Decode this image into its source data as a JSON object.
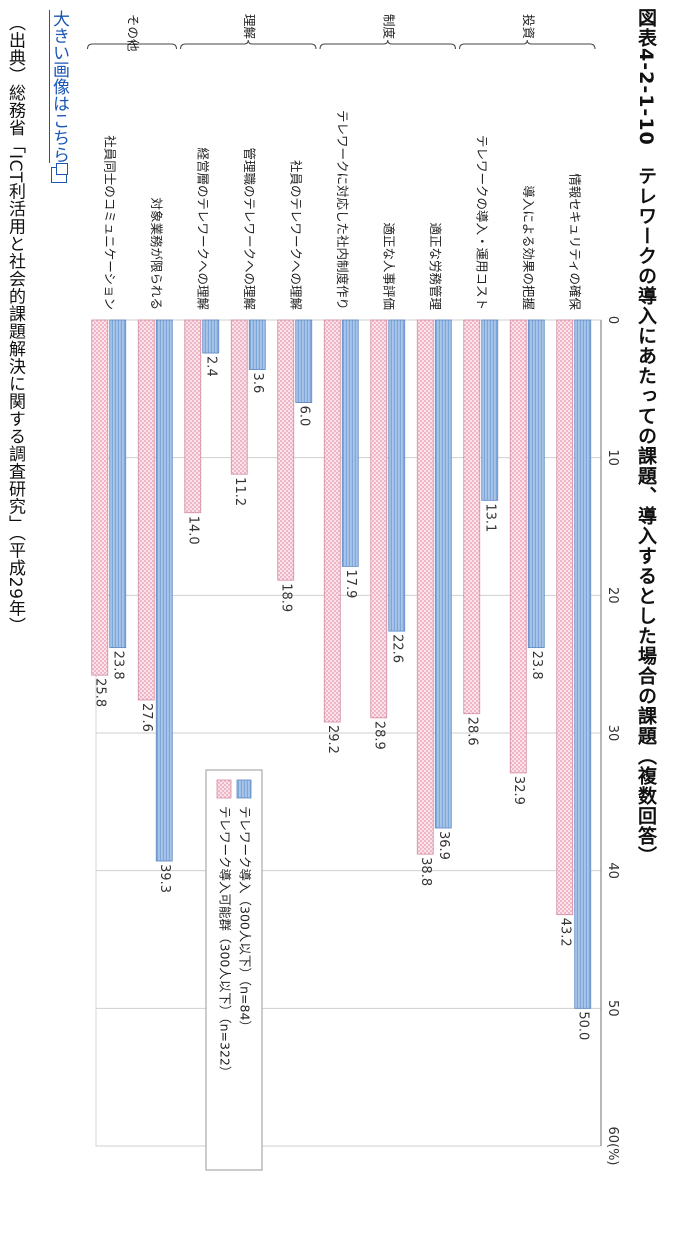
{
  "title": "図表4-2-1-10　テレワークの導入にあたっての課題、導入するとした場合の課題（複数回答）",
  "link_text": "大きい画像はこちら",
  "source": "（出典）総務省「ICT利活用と社会的課題解決に関する調査研究」（平成29年）",
  "colors": {
    "series1": "#93b7e3",
    "series2": "#f3cad6"
  },
  "chart_data": {
    "type": "bar",
    "orientation": "horizontal-rotated",
    "unit": "(%)",
    "ylim": [
      0,
      60
    ],
    "ticks": [
      "0",
      "10",
      "20",
      "30",
      "40",
      "50",
      "60(%)"
    ],
    "groups": [
      {
        "label": "投資",
        "categories": [
          0,
          1,
          2
        ]
      },
      {
        "label": "制度",
        "categories": [
          3,
          4,
          5
        ]
      },
      {
        "label": "理解",
        "categories": [
          6,
          7,
          8
        ]
      },
      {
        "label": "その他",
        "categories": [
          9,
          10
        ]
      }
    ],
    "categories": [
      "情報セキュリティの確保",
      "導入による効果の把握",
      "テレワークの導入・運用コスト",
      "適正な労務管理",
      "適正な人事評価",
      "テレワークに対応した社内制度作り",
      "社員のテレワークへの理解",
      "管理職のテレワークへの理解",
      "経営層のテレワークへの理解",
      "対象業務が限られる",
      "社員同士のコミュニケーション"
    ],
    "series": [
      {
        "name": "テレワーク導入（300人以下）（n=84）",
        "values": [
          50.0,
          23.8,
          13.1,
          36.9,
          22.6,
          17.9,
          6.0,
          3.6,
          2.4,
          39.3,
          23.8
        ],
        "labels": [
          "50.0",
          "23.8",
          "13.1",
          "36.9",
          "22.6",
          "17.9",
          "6.0",
          "3.6",
          "2.4",
          "39.3",
          "23.8"
        ]
      },
      {
        "name": "テレワーク導入可能群（300人以下）（n=322）",
        "values": [
          43.2,
          32.9,
          28.6,
          38.8,
          28.9,
          29.2,
          18.9,
          11.2,
          14.0,
          27.6,
          25.8
        ],
        "labels": [
          "43.2",
          "32.9",
          "28.6",
          "38.8",
          "28.9",
          "29.2",
          "18.9",
          "11.2",
          "14.0",
          "27.6",
          "25.8"
        ]
      }
    ],
    "legend_position": "bottom-right",
    "grid": true
  }
}
